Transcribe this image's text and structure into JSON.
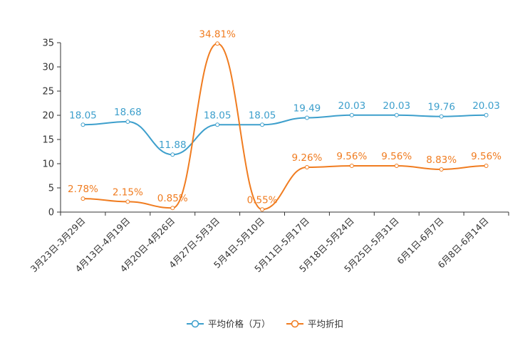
{
  "chart_data": {
    "type": "line",
    "title": "",
    "xlabel": "",
    "ylabel": "",
    "ylim": [
      0,
      35
    ],
    "yticks": [
      0,
      5,
      10,
      15,
      20,
      25,
      30,
      35
    ],
    "grid": false,
    "legend_position": "bottom-center",
    "categories": [
      "3月23日-3月29日",
      "4月13日-4月19日",
      "4月20日-4月26日",
      "4月27日-5月3日",
      "5月4日-5月10日",
      "5月11日-5月17日",
      "5月18日-5月24日",
      "5月25日-5月31日",
      "6月1日-6月7日",
      "6月8日-6月14日"
    ],
    "series": [
      {
        "name": "平均价格（万）",
        "color": "#3d9fcc",
        "smooth": true,
        "values": [
          18.05,
          18.68,
          11.88,
          18.05,
          18.05,
          19.49,
          20.03,
          20.03,
          19.76,
          20.03
        ],
        "labels": [
          "18.05",
          "18.68",
          "11.88",
          "18.05",
          "18.05",
          "19.49",
          "20.03",
          "20.03",
          "19.76",
          "20.03"
        ]
      },
      {
        "name": "平均折扣",
        "color": "#f07c20",
        "smooth": true,
        "values": [
          2.78,
          2.15,
          0.85,
          34.81,
          0.55,
          9.26,
          9.56,
          9.56,
          8.83,
          9.56
        ],
        "labels": [
          "2.78%",
          "2.15%",
          "0.85%",
          "34.81%",
          "0.55%",
          "9.26%",
          "9.56%",
          "9.56%",
          "8.83%",
          "9.56%"
        ]
      }
    ]
  }
}
